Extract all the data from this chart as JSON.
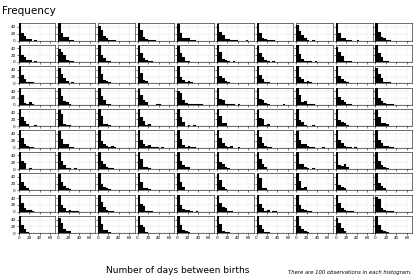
{
  "n_rows": 10,
  "n_cols": 10,
  "n_samples": 100,
  "n_histograms": 100,
  "mean": 7,
  "seed": 42,
  "x_max": 70,
  "bins": 14,
  "title_ylabel": "Frequency",
  "title_xlabel": "Number of days between births",
  "note": "There are 100 observations in each histogram.",
  "bg_color": "#ffffff",
  "bar_color": "#000000",
  "tick_fontsize": 3.0,
  "label_fontsize": 6.5,
  "note_fontsize": 3.8,
  "title_fontsize": 7.5,
  "yticks": [
    0,
    20,
    40
  ],
  "xticks": [
    0,
    20,
    40,
    60
  ]
}
